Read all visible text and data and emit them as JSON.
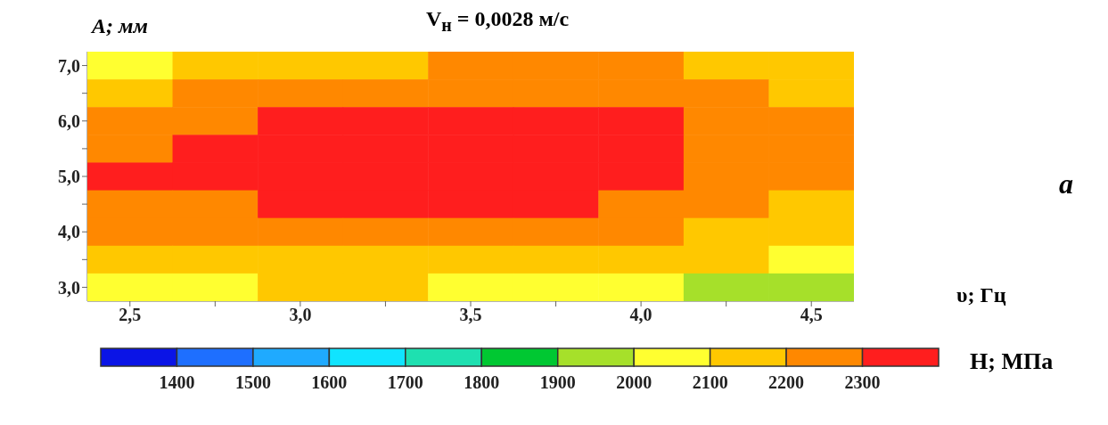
{
  "chart_data": {
    "type": "heatmap",
    "title": "V$_{н}$ = 0,0028 м/с",
    "xlabel": "υ; Гц",
    "ylabel": "A; мм",
    "clabel": "H; МПа",
    "annotations": [
      "a"
    ],
    "categories": [
      "2,5",
      null,
      "3,0",
      null,
      "3,5",
      null,
      "4,0",
      null,
      "4,5"
    ],
    "y_categories": [
      "7,0",
      null,
      "6,0",
      null,
      "5,0",
      null,
      "4,0",
      null,
      "3,0"
    ],
    "cells": [
      [
        2050,
        2150,
        2150,
        2150,
        2250,
        2250,
        2250,
        2150,
        2150
      ],
      [
        2150,
        2250,
        2250,
        2250,
        2250,
        2250,
        2250,
        2250,
        2150
      ],
      [
        2250,
        2250,
        2350,
        2350,
        2350,
        2350,
        2350,
        2250,
        2250
      ],
      [
        2250,
        2350,
        2350,
        2350,
        2350,
        2350,
        2350,
        2250,
        2250
      ],
      [
        2350,
        2350,
        2350,
        2350,
        2350,
        2350,
        2350,
        2250,
        2250
      ],
      [
        2250,
        2250,
        2350,
        2350,
        2350,
        2350,
        2250,
        2250,
        2150
      ],
      [
        2250,
        2250,
        2250,
        2250,
        2250,
        2250,
        2250,
        2150,
        2150
      ],
      [
        2150,
        2150,
        2150,
        2150,
        2150,
        2150,
        2150,
        2150,
        2050
      ],
      [
        2050,
        2050,
        2150,
        2150,
        2050,
        2050,
        2050,
        1950,
        1950
      ]
    ],
    "clim": [
      1300,
      2400
    ],
    "cticks": [
      1400,
      1500,
      1600,
      1700,
      1800,
      1900,
      2000,
      2100,
      2200,
      2300
    ]
  }
}
